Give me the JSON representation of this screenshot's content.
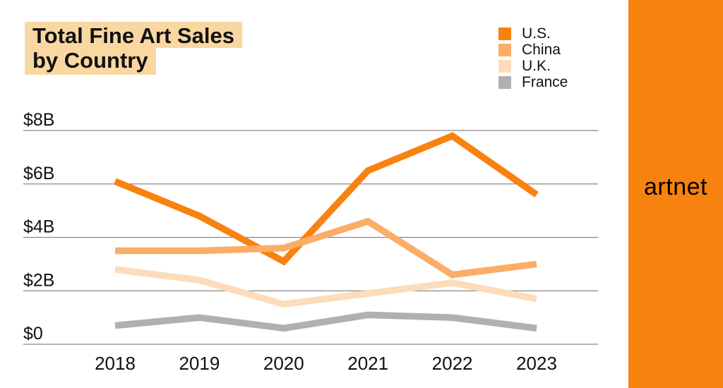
{
  "title": {
    "line1": "Total Fine Art Sales",
    "line2": "by Country"
  },
  "brand": {
    "name": "artnet"
  },
  "colors": {
    "background": "#FFFFFF",
    "title_highlight": "#F9D7A1",
    "gridline": "#878787",
    "axis_text": "#111111",
    "brand_bg": "#F8820F",
    "brand_text": "#000000"
  },
  "chart_data": {
    "type": "line",
    "title": "Total Fine Art Sales by Country",
    "unit": "billions USD",
    "x": [
      "2018",
      "2019",
      "2020",
      "2021",
      "2022",
      "2023"
    ],
    "series": [
      {
        "name": "U.S.",
        "color": "#F8820F",
        "z": 1,
        "values": [
          6.1,
          4.8,
          3.1,
          6.5,
          7.8,
          5.6
        ]
      },
      {
        "name": "China",
        "color": "#FBAD68",
        "z": 4,
        "values": [
          3.5,
          3.5,
          3.6,
          4.6,
          2.6,
          3.0
        ]
      },
      {
        "name": "U.K.",
        "color": "#FDDCBB",
        "z": 2,
        "values": [
          2.8,
          2.4,
          1.5,
          1.9,
          2.3,
          1.7
        ]
      },
      {
        "name": "France",
        "color": "#B1B0B0",
        "z": 3,
        "values": [
          0.7,
          1.0,
          0.6,
          1.1,
          1.0,
          0.6
        ]
      }
    ],
    "y_ticks": [
      {
        "value": 8,
        "label": "$8B"
      },
      {
        "value": 6,
        "label": "$6B"
      },
      {
        "value": 4,
        "label": "$4B"
      },
      {
        "value": 2,
        "label": "$2B"
      },
      {
        "value": 0,
        "label": "$0"
      }
    ],
    "ylim": [
      0,
      8.5
    ],
    "grid": "horizontal",
    "legend_position": "top-right"
  }
}
